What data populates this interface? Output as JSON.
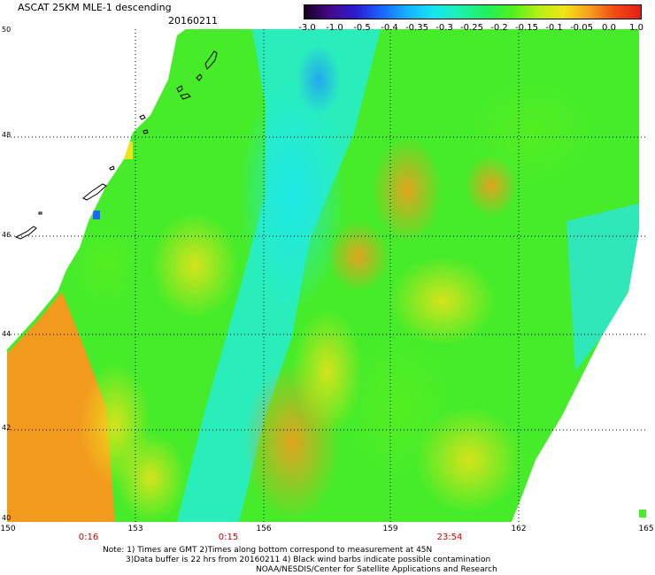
{
  "header": {
    "title": "ASCAT 25KM MLE-1 descending",
    "date": "20160211"
  },
  "colorbar": {
    "ticks": [
      "-3.0",
      "-1.0",
      "-0.5",
      "-0.4",
      "-0.35",
      "-0.3",
      "-0.25",
      "-0.2",
      "-0.15",
      "-0.1",
      "-0.05",
      "0.0",
      "1.0"
    ],
    "colors": [
      "#1a0020",
      "#440a8c",
      "#2a1ed0",
      "#1a66ff",
      "#15b4ff",
      "#16e6f0",
      "#1ef0b0",
      "#1ef060",
      "#4df01e",
      "#b0f014",
      "#f0e614",
      "#f5a01e",
      "#f04a14",
      "#e61e14"
    ]
  },
  "map": {
    "lat_labels": [
      "50",
      "48",
      "46",
      "44",
      "42",
      "40"
    ],
    "lon_labels": [
      "150",
      "153",
      "156",
      "159",
      "162",
      "165"
    ],
    "time_labels": [
      "0:16",
      "0:15",
      "23:54"
    ]
  },
  "notes": {
    "line1": "Note: 1) Times are GMT 2)Times along bottom correspond to measurement at 45N",
    "line2": "3)Data buffer is 22 hrs from 20160211 4) Black wind barbs indicate possible contamination",
    "line3": "NOAA/NESDIS/Center for Satellite Applications and Research"
  }
}
